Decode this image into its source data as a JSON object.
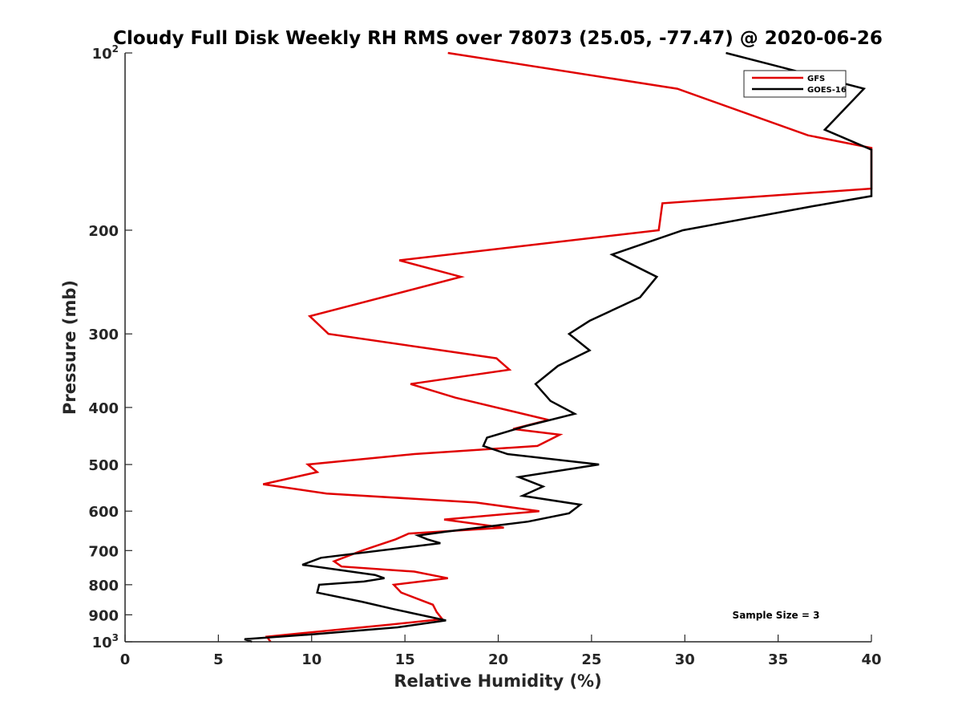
{
  "chart_data": {
    "type": "line",
    "title": "Cloudy Full Disk Weekly RH RMS over 78073 (25.05, -77.47) @ 2020-06-26",
    "xlabel": "Relative Humidity (%)",
    "ylabel": "Pressure (mb)",
    "xlim": [
      0,
      40
    ],
    "ylim": [
      100,
      1000
    ],
    "y_scale": "log",
    "y_reversed": true,
    "grid": false,
    "legend_position": "top-right",
    "x_ticks": [
      0,
      5,
      10,
      15,
      20,
      25,
      30,
      35,
      40
    ],
    "y_ticks": [
      {
        "value": 100,
        "base": "10",
        "exp": "2"
      },
      {
        "value": 200,
        "label": "200"
      },
      {
        "value": 300,
        "label": "300"
      },
      {
        "value": 400,
        "label": "400"
      },
      {
        "value": 500,
        "label": "500"
      },
      {
        "value": 600,
        "label": "600"
      },
      {
        "value": 700,
        "label": "700"
      },
      {
        "value": 800,
        "label": "800"
      },
      {
        "value": 900,
        "label": "900"
      },
      {
        "value": 1000,
        "base": "10",
        "exp": "3"
      }
    ],
    "series": [
      {
        "name": "GFS",
        "color": "#e00000",
        "points": [
          [
            17.3,
            100
          ],
          [
            29.6,
            115
          ],
          [
            36.6,
            138
          ],
          [
            40,
            145
          ],
          [
            40,
            170
          ],
          [
            28.8,
            180
          ],
          [
            28.6,
            200
          ],
          [
            14.7,
            225
          ],
          [
            18.0,
            240
          ],
          [
            9.9,
            280
          ],
          [
            10.9,
            300
          ],
          [
            19.9,
            330
          ],
          [
            20.6,
            345
          ],
          [
            15.3,
            365
          ],
          [
            17.7,
            385
          ],
          [
            22.7,
            420
          ],
          [
            20.8,
            435
          ],
          [
            23.3,
            445
          ],
          [
            22.1,
            465
          ],
          [
            15.5,
            480
          ],
          [
            9.8,
            500
          ],
          [
            10.3,
            515
          ],
          [
            7.4,
            540
          ],
          [
            10.8,
            560
          ],
          [
            18.8,
            580
          ],
          [
            22.2,
            600
          ],
          [
            17.1,
            620
          ],
          [
            20.3,
            640
          ],
          [
            15.2,
            655
          ],
          [
            14.5,
            670
          ],
          [
            12.7,
            700
          ],
          [
            11.2,
            730
          ],
          [
            11.6,
            745
          ],
          [
            15.5,
            760
          ],
          [
            17.3,
            780
          ],
          [
            14.4,
            800
          ],
          [
            14.8,
            825
          ],
          [
            16.5,
            865
          ],
          [
            16.7,
            890
          ],
          [
            17.0,
            915
          ],
          [
            14.2,
            935
          ],
          [
            7.6,
            980
          ],
          [
            7.8,
            1000
          ]
        ]
      },
      {
        "name": "GOES-16",
        "color": "#000000",
        "points": [
          [
            32.2,
            100
          ],
          [
            34.8,
            105
          ],
          [
            39.6,
            115
          ],
          [
            37.5,
            135
          ],
          [
            40,
            146
          ],
          [
            40,
            175
          ],
          [
            36.9,
            182
          ],
          [
            29.9,
            200
          ],
          [
            26.1,
            220
          ],
          [
            28.5,
            240
          ],
          [
            27.6,
            260
          ],
          [
            24.9,
            285
          ],
          [
            23.8,
            300
          ],
          [
            24.9,
            320
          ],
          [
            23.2,
            340
          ],
          [
            22.0,
            365
          ],
          [
            22.8,
            390
          ],
          [
            24.1,
            410
          ],
          [
            21.5,
            430
          ],
          [
            19.4,
            450
          ],
          [
            19.2,
            465
          ],
          [
            20.5,
            480
          ],
          [
            25.4,
            500
          ],
          [
            21.1,
            525
          ],
          [
            22.4,
            545
          ],
          [
            21.3,
            565
          ],
          [
            24.4,
            585
          ],
          [
            23.8,
            605
          ],
          [
            21.6,
            625
          ],
          [
            17.2,
            650
          ],
          [
            15.7,
            660
          ],
          [
            16.2,
            670
          ],
          [
            16.9,
            680
          ],
          [
            10.5,
            720
          ],
          [
            9.5,
            740
          ],
          [
            13.4,
            770
          ],
          [
            13.9,
            780
          ],
          [
            12.8,
            790
          ],
          [
            10.4,
            800
          ],
          [
            10.3,
            825
          ],
          [
            12.7,
            855
          ],
          [
            14.4,
            880
          ],
          [
            17.2,
            920
          ],
          [
            14.6,
            945
          ],
          [
            10.3,
            970
          ],
          [
            6.4,
            990
          ],
          [
            6.8,
            1000
          ]
        ]
      }
    ],
    "annotations": [
      {
        "text": "Sample Size = 3"
      }
    ]
  }
}
